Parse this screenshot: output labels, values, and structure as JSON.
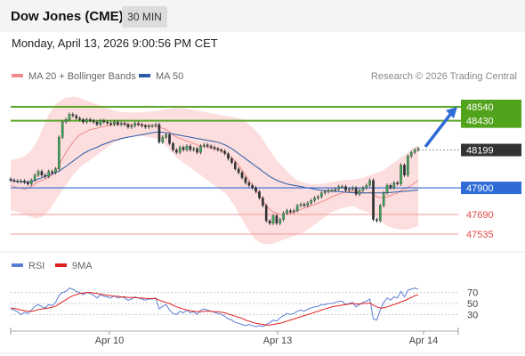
{
  "header": {
    "title": "Dow Jones (CME)",
    "timeframe": "30 MIN",
    "datetime": "Monday, April 13, 2026 9:00:56 PM CET"
  },
  "legend": {
    "items": [
      {
        "label": "MA 20 + Bollinger Bands",
        "color": "#f08a8a"
      },
      {
        "label": "MA 50",
        "color": "#2a5aa8"
      }
    ],
    "copyright": "Research © 2026 Trading Central"
  },
  "rsi_legend": {
    "items": [
      {
        "label": "RSI",
        "color": "#5b7fd6"
      },
      {
        "label": "9MA",
        "color": "#e02020"
      }
    ]
  },
  "chart_data": [
    {
      "type": "candlestick",
      "title": "",
      "y_range": [
        47420,
        48620
      ],
      "x_ticks": [
        "Apr 10",
        "Apr 13",
        "Apr 14"
      ],
      "levels": [
        {
          "value": 48540,
          "label": "48540",
          "kind": "resistance",
          "color": "#5aa52a"
        },
        {
          "value": 48430,
          "label": "48430",
          "kind": "resistance",
          "color": "#5aa52a"
        },
        {
          "value": 48199,
          "label": "48199",
          "kind": "current",
          "color": "#333333"
        },
        {
          "value": 47900,
          "label": "47900",
          "kind": "pivot",
          "color": "#2f6bd6"
        },
        {
          "value": 47690,
          "label": "47690",
          "kind": "support",
          "color": "#e24848"
        },
        {
          "value": 47535,
          "label": "47535",
          "kind": "support",
          "color": "#e24848"
        }
      ],
      "close_series": [
        47960,
        47955,
        47950,
        47955,
        47945,
        47930,
        47960,
        48000,
        48030,
        48000,
        47990,
        48030,
        48020,
        48050,
        48300,
        48420,
        48440,
        48480,
        48470,
        48450,
        48440,
        48420,
        48440,
        48430,
        48420,
        48400,
        48430,
        48420,
        48410,
        48400,
        48420,
        48400,
        48410,
        48400,
        48380,
        48390,
        48410,
        48400,
        48390,
        48380,
        48390,
        48390,
        48400,
        48260,
        48300,
        48320,
        48250,
        48200,
        48180,
        48220,
        48200,
        48230,
        48200,
        48210,
        48180,
        48230,
        48240,
        48230,
        48220,
        48210,
        48200,
        48190,
        48170,
        48130,
        48100,
        48050,
        48020,
        47980,
        47940,
        47920,
        47900,
        47870,
        47820,
        47760,
        47640,
        47620,
        47680,
        47620,
        47650,
        47700,
        47720,
        47710,
        47720,
        47760,
        47770,
        47760,
        47780,
        47800,
        47820,
        47830,
        47860,
        47870,
        47880,
        47880,
        47890,
        47910,
        47910,
        47880,
        47890,
        47900,
        47850,
        47880,
        47900,
        47920,
        47960,
        47650,
        47640,
        47760,
        47860,
        47920,
        47900,
        47940,
        47930,
        48080,
        48000,
        48150,
        48180,
        48200,
        48210
      ],
      "ma20_series": [
        47920,
        47910,
        47900,
        47900,
        47890,
        47900,
        47910,
        47930,
        47950,
        47960,
        47970,
        47985,
        48000,
        48030,
        48080,
        48130,
        48180,
        48220,
        48260,
        48290,
        48320,
        48330,
        48345,
        48360,
        48365,
        48370,
        48380,
        48385,
        48390,
        48395,
        48400,
        48400,
        48405,
        48405,
        48400,
        48400,
        48400,
        48395,
        48395,
        48395,
        48390,
        48390,
        48390,
        48380,
        48370,
        48360,
        48340,
        48320,
        48300,
        48290,
        48280,
        48270,
        48260,
        48250,
        48240,
        48230,
        48230,
        48220,
        48215,
        48210,
        48200,
        48190,
        48180,
        48160,
        48140,
        48110,
        48080,
        48040,
        48000,
        47960,
        47920,
        47880,
        47840,
        47800,
        47760,
        47730,
        47710,
        47700,
        47690,
        47690,
        47690,
        47700,
        47710,
        47720,
        47730,
        47740,
        47750,
        47760,
        47770,
        47780,
        47790,
        47800,
        47815,
        47830,
        47840,
        47850,
        47860,
        47865,
        47870,
        47875,
        47870,
        47865,
        47860,
        47860,
        47865,
        47850,
        47830,
        47820,
        47820,
        47830,
        47840,
        47850,
        47860,
        47880,
        47890,
        47905,
        47920,
        47940,
        47960
      ],
      "ma50_series": [
        47960,
        47955,
        47950,
        47950,
        47945,
        47945,
        47950,
        47960,
        47970,
        47980,
        47990,
        48000,
        48010,
        48020,
        48030,
        48050,
        48070,
        48090,
        48110,
        48130,
        48150,
        48170,
        48185,
        48200,
        48210,
        48220,
        48235,
        48245,
        48255,
        48265,
        48275,
        48280,
        48290,
        48295,
        48300,
        48305,
        48310,
        48315,
        48320,
        48325,
        48330,
        48335,
        48340,
        48340,
        48340,
        48335,
        48330,
        48325,
        48320,
        48315,
        48310,
        48305,
        48300,
        48295,
        48290,
        48285,
        48280,
        48275,
        48270,
        48265,
        48260,
        48250,
        48240,
        48225,
        48210,
        48190,
        48170,
        48150,
        48130,
        48110,
        48090,
        48070,
        48050,
        48030,
        48010,
        47990,
        47975,
        47960,
        47950,
        47940,
        47930,
        47925,
        47920,
        47915,
        47910,
        47905,
        47900,
        47895,
        47890,
        47885,
        47880,
        47878,
        47876,
        47874,
        47872,
        47870,
        47868,
        47866,
        47864,
        47862,
        47860,
        47860,
        47860,
        47860,
        47860,
        47860,
        47860,
        47860,
        47860,
        47862,
        47864,
        47866,
        47868,
        47870,
        47872,
        47875,
        47878,
        47880,
        47882
      ],
      "band_upper": [
        48120,
        48125,
        48130,
        48140,
        48150,
        48170,
        48200,
        48240,
        48290,
        48350,
        48420,
        48480,
        48520,
        48560,
        48580,
        48600,
        48610,
        48615,
        48620,
        48615,
        48610,
        48600,
        48590,
        48580,
        48570,
        48560,
        48550,
        48540,
        48530,
        48520,
        48510,
        48505,
        48500,
        48498,
        48496,
        48495,
        48495,
        48496,
        48497,
        48500,
        48502,
        48505,
        48508,
        48510,
        48515,
        48520,
        48525,
        48528,
        48530,
        48530,
        48528,
        48525,
        48520,
        48515,
        48510,
        48505,
        48500,
        48495,
        48490,
        48485,
        48480,
        48475,
        48470,
        48465,
        48460,
        48455,
        48450,
        48440,
        48420,
        48400,
        48380,
        48350,
        48320,
        48280,
        48240,
        48200,
        48160,
        48120,
        48090,
        48060,
        48030,
        48000,
        47980,
        47960,
        47950,
        47940,
        47935,
        47930,
        47930,
        47930,
        47932,
        47935,
        47940,
        47945,
        47950,
        47955,
        47960,
        47962,
        47964,
        47966,
        47970,
        47975,
        47980,
        47990,
        48000,
        48010,
        48020,
        48030,
        48040,
        48060,
        48080,
        48100,
        48120,
        48140,
        48160,
        48180,
        48200,
        48220,
        48240
      ],
      "band_lower": [
        47720,
        47715,
        47710,
        47700,
        47690,
        47680,
        47670,
        47660,
        47660,
        47670,
        47690,
        47720,
        47760,
        47800,
        47840,
        47880,
        47920,
        47960,
        48000,
        48030,
        48060,
        48080,
        48100,
        48120,
        48140,
        48160,
        48180,
        48200,
        48220,
        48240,
        48260,
        48270,
        48280,
        48290,
        48300,
        48305,
        48310,
        48310,
        48310,
        48305,
        48300,
        48295,
        48290,
        48280,
        48260,
        48230,
        48200,
        48170,
        48140,
        48120,
        48100,
        48080,
        48060,
        48040,
        48020,
        48000,
        47980,
        47960,
        47940,
        47920,
        47900,
        47880,
        47860,
        47830,
        47790,
        47750,
        47700,
        47650,
        47600,
        47560,
        47520,
        47490,
        47470,
        47460,
        47455,
        47455,
        47460,
        47470,
        47480,
        47490,
        47500,
        47510,
        47520,
        47530,
        47540,
        47555,
        47570,
        47590,
        47610,
        47630,
        47650,
        47670,
        47690,
        47710,
        47720,
        47730,
        47740,
        47745,
        47750,
        47755,
        47745,
        47730,
        47720,
        47710,
        47700,
        47680,
        47660,
        47640,
        47620,
        47600,
        47590,
        47580,
        47575,
        47570,
        47570,
        47575,
        47580,
        47590,
        47600
      ]
    },
    {
      "type": "line",
      "title": "RSI",
      "y_range": [
        0,
        100
      ],
      "y_ticks": [
        30,
        50,
        70
      ],
      "series": [
        {
          "name": "RSI",
          "color": "#5b7fd6",
          "values": [
            40,
            38,
            35,
            30,
            34,
            32,
            38,
            45,
            48,
            44,
            42,
            48,
            46,
            52,
            65,
            70,
            72,
            78,
            76,
            72,
            70,
            66,
            70,
            68,
            65,
            60,
            66,
            63,
            62,
            60,
            64,
            60,
            62,
            60,
            56,
            58,
            62,
            60,
            58,
            56,
            58,
            58,
            60,
            40,
            45,
            48,
            38,
            32,
            30,
            36,
            33,
            38,
            33,
            35,
            30,
            38,
            40,
            38,
            36,
            34,
            32,
            30,
            27,
            22,
            20,
            16,
            14,
            12,
            10,
            12,
            10,
            8,
            10,
            8,
            12,
            15,
            20,
            18,
            24,
            28,
            32,
            30,
            32,
            36,
            38,
            36,
            40,
            42,
            44,
            45,
            48,
            48,
            50,
            50,
            52,
            54,
            54,
            48,
            50,
            52,
            44,
            48,
            52,
            54,
            58,
            22,
            20,
            38,
            52,
            60,
            56,
            62,
            60,
            72,
            62,
            74,
            76,
            78,
            76
          ]
        },
        {
          "name": "9MA",
          "color": "#e02020",
          "values": [
            42,
            41,
            40,
            38,
            37,
            36,
            36,
            37,
            39,
            40,
            41,
            42,
            43,
            45,
            49,
            53,
            57,
            61,
            64,
            66,
            68,
            69,
            70,
            70,
            69,
            68,
            67,
            66,
            65,
            64,
            63,
            63,
            62,
            62,
            61,
            61,
            61,
            60,
            60,
            59,
            59,
            59,
            59,
            56,
            54,
            52,
            50,
            47,
            44,
            42,
            40,
            38,
            37,
            36,
            35,
            35,
            36,
            36,
            36,
            35,
            35,
            34,
            33,
            31,
            29,
            27,
            25,
            23,
            20,
            18,
            16,
            14,
            13,
            12,
            11,
            11,
            12,
            13,
            14,
            16,
            18,
            20,
            22,
            24,
            26,
            28,
            30,
            32,
            34,
            36,
            38,
            40,
            42,
            44,
            45,
            46,
            47,
            48,
            49,
            50,
            49,
            49,
            50,
            50,
            51,
            47,
            44,
            42,
            42,
            44,
            46,
            48,
            50,
            53,
            55,
            58,
            61,
            64,
            66
          ]
        }
      ]
    }
  ]
}
